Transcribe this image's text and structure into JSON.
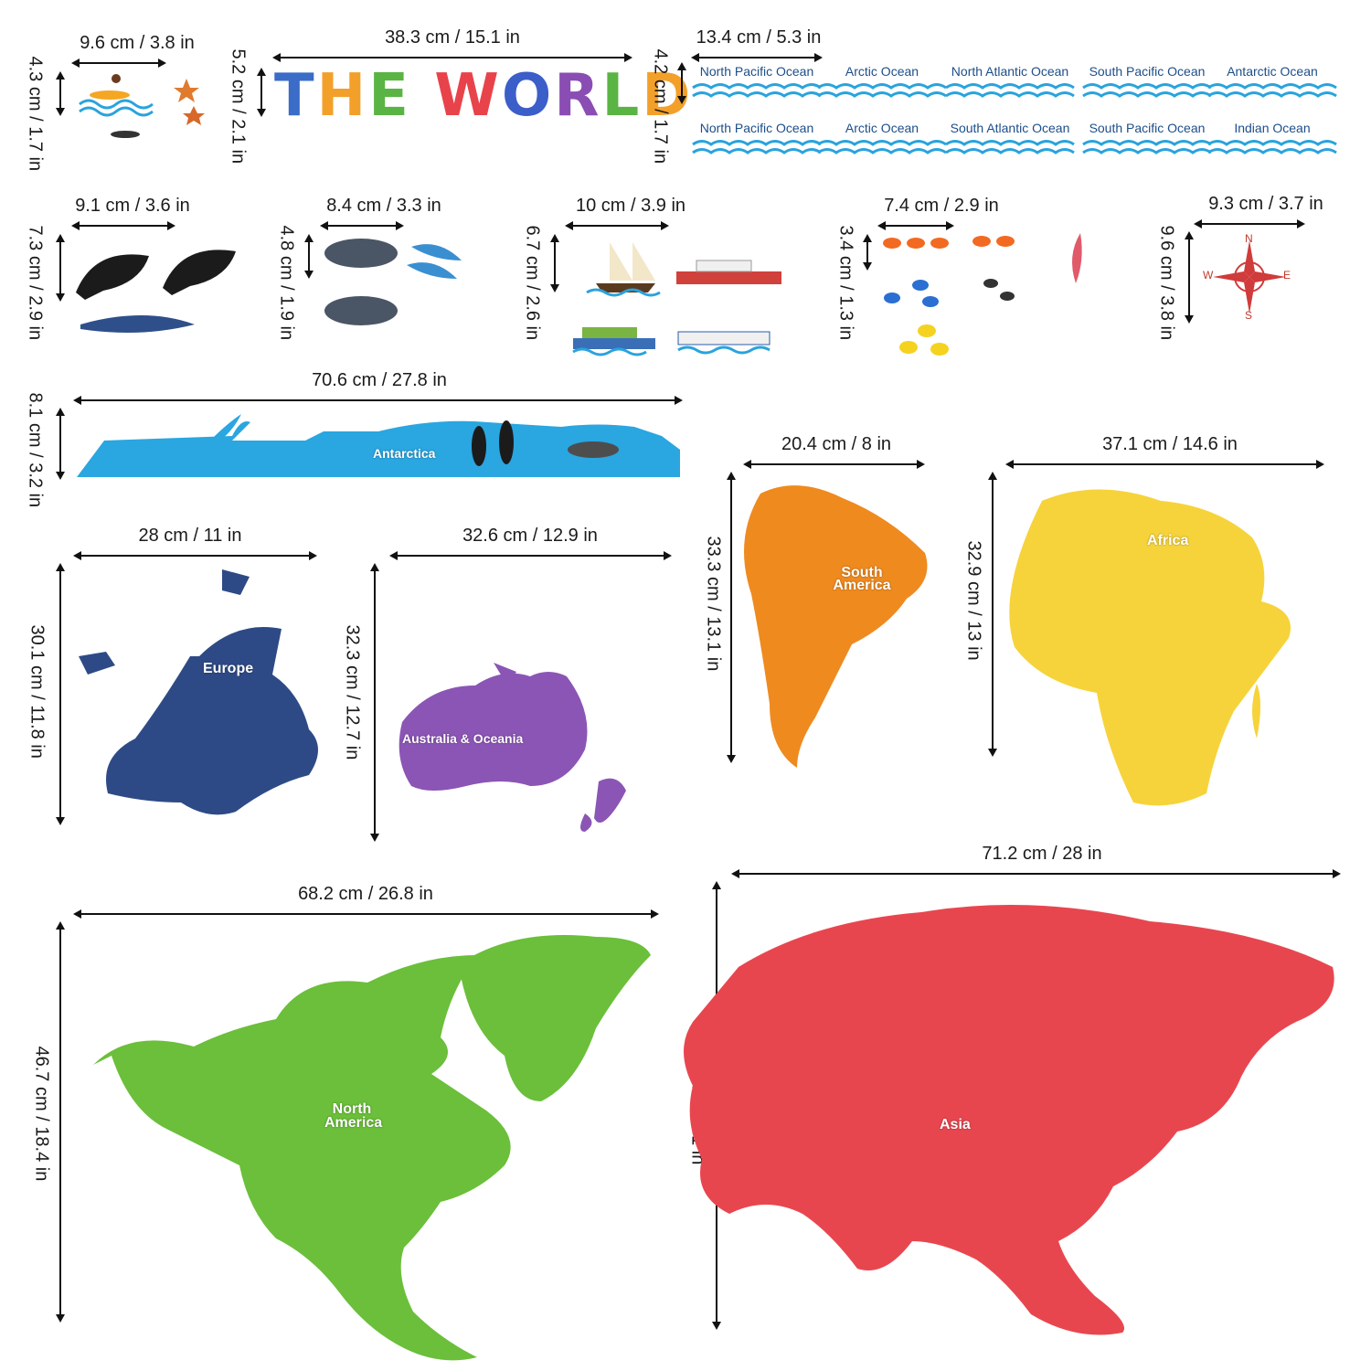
{
  "title_letters": [
    {
      "ch": "T",
      "color": "#3a6cc8"
    },
    {
      "ch": "H",
      "color": "#f3a02a"
    },
    {
      "ch": "E",
      "color": "#5ab443"
    },
    {
      "ch": " ",
      "color": "#000000"
    },
    {
      "ch": "W",
      "color": "#e8434b"
    },
    {
      "ch": "O",
      "color": "#3b5ec8"
    },
    {
      "ch": "R",
      "color": "#8a4db3"
    },
    {
      "ch": "L",
      "color": "#5ab443"
    },
    {
      "ch": "D",
      "color": "#f3a02a"
    }
  ],
  "dimensions": {
    "surfer_w": "9.6 cm / 3.8 in",
    "surfer_h": "4.3 cm / 1.7 in",
    "title_w": "38.3 cm / 15.1 in",
    "title_h": "5.2 cm / 2.1 in",
    "ocean_w": "13.4 cm / 5.3 in",
    "ocean_h": "4.2 cm / 1.7 in",
    "whales_w": "9.1 cm / 3.6 in",
    "whales_h": "7.3 cm / 2.9 in",
    "dolphins_w": "8.4 cm / 3.3 in",
    "dolphins_h": "4.8 cm / 1.9 in",
    "ships_w": "10 cm / 3.9 in",
    "ships_h": "6.7 cm / 2.6 in",
    "fish_w": "7.4 cm / 2.9 in",
    "fish_h": "3.4 cm / 1.3 in",
    "compass_w": "9.3 cm / 3.7 in",
    "compass_h": "9.6 cm / 3.8 in",
    "antarctica_w": "70.6 cm / 27.8 in",
    "antarctica_h": "8.1 cm / 3.2 in",
    "south_america_w": "20.4 cm / 8 in",
    "south_america_h": "33.3 cm / 13.1 in",
    "africa_w": "37.1 cm / 14.6 in",
    "africa_h": "32.9 cm / 13 in",
    "europe_w": "28 cm / 11 in",
    "europe_h": "30.1 cm / 11.8 in",
    "oceania_w": "32.6 cm / 12.9 in",
    "oceania_h": "32.3 cm / 12.7 in",
    "north_america_w": "68.2 cm / 26.8 in",
    "north_america_h": "46.7 cm / 18.4 in",
    "asia_w": "71.2 cm / 28 in",
    "asia_h": "46.1 cm / 18.1 in"
  },
  "oceans_row1": [
    "North Pacific Ocean",
    "Arctic Ocean",
    "North Atlantic Ocean",
    "South Pacific Ocean",
    "Antarctic Ocean"
  ],
  "oceans_row2": [
    "North Pacific Ocean",
    "Arctic Ocean",
    "South Atlantic Ocean",
    "South Pacific Ocean",
    "Indian Ocean"
  ],
  "continents": {
    "antarctica": "Antarctica",
    "south_america": "South America",
    "africa": "Africa",
    "europe": "Europe",
    "oceania": "Australia & Oceania",
    "north_america": "North America",
    "asia": "Asia"
  },
  "compass": {
    "n": "N",
    "s": "S",
    "e": "E",
    "w": "W"
  },
  "colors": {
    "antarctica": "#2aa6e0",
    "south_america": "#ef8a1f",
    "africa": "#f6d33a",
    "europe": "#2e4a86",
    "oceania": "#8b55b5",
    "north_america": "#6bbf3a",
    "asia": "#e8464f",
    "ocean_wave": "#29a3dd",
    "ocean_text": "#1d4e89"
  }
}
